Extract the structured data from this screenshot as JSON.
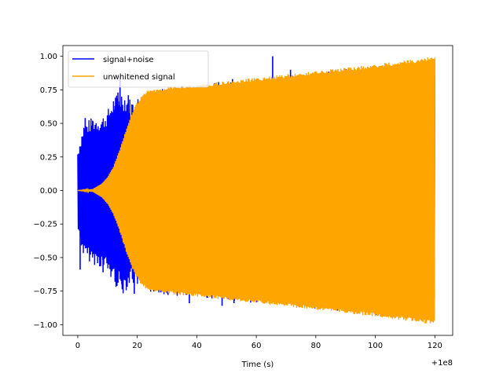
{
  "chart_data": {
    "type": "line",
    "title": "",
    "xlabel": "Time (s)",
    "ylabel": "",
    "x_offset_label": "+1e8",
    "xlim": [
      -5,
      126
    ],
    "ylim": [
      -1.08,
      1.08
    ],
    "xticks": [
      0,
      20,
      40,
      60,
      80,
      100,
      120
    ],
    "yticks": [
      1.0,
      0.75,
      0.5,
      0.25,
      0.0,
      -0.25,
      -0.5,
      -0.75,
      -1.0
    ],
    "xtick_labels": [
      "0",
      "20",
      "40",
      "60",
      "80",
      "100",
      "120"
    ],
    "ytick_labels": [
      "1.00",
      "0.75",
      "0.50",
      "0.25",
      "0.00",
      "−0.25",
      "−0.50",
      "−0.75",
      "−1.00"
    ],
    "grid": false,
    "legend_position": "top-left",
    "series": [
      {
        "name": "signal+noise",
        "color": "#0000ff",
        "x_range": [
          0,
          120
        ],
        "envelope_upper": [
          [
            0,
            0.3
          ],
          [
            2,
            0.5
          ],
          [
            5,
            0.55
          ],
          [
            8,
            0.55
          ],
          [
            10,
            0.6
          ],
          [
            12,
            0.7
          ],
          [
            15,
            0.75
          ],
          [
            18,
            0.68
          ],
          [
            20,
            0.7
          ],
          [
            25,
            0.76
          ],
          [
            40,
            0.8
          ],
          [
            60,
            0.84
          ],
          [
            80,
            0.88
          ],
          [
            100,
            0.93
          ],
          [
            120,
            0.96
          ]
        ],
        "envelope_lower": [
          [
            0,
            -0.3
          ],
          [
            2,
            -0.5
          ],
          [
            5,
            -0.55
          ],
          [
            8,
            -0.58
          ],
          [
            10,
            -0.62
          ],
          [
            12,
            -0.7
          ],
          [
            15,
            -0.78
          ],
          [
            18,
            -0.7
          ],
          [
            20,
            -0.72
          ],
          [
            25,
            -0.77
          ],
          [
            40,
            -0.8
          ],
          [
            60,
            -0.84
          ],
          [
            80,
            -0.88
          ],
          [
            100,
            -0.93
          ],
          [
            120,
            -0.97
          ]
        ],
        "spikes": [
          [
            0.8,
            -0.59
          ],
          [
            2.5,
            0.54
          ],
          [
            5,
            0.52
          ],
          [
            8.5,
            -0.61
          ],
          [
            12.5,
            0.63
          ],
          [
            13.5,
            0.73
          ],
          [
            14.2,
            0.85
          ],
          [
            14.8,
            -0.7
          ],
          [
            17,
            0.71
          ],
          [
            19,
            -0.77
          ],
          [
            37.5,
            -0.84
          ],
          [
            48.5,
            -0.86
          ],
          [
            52,
            0.83
          ],
          [
            52.5,
            -0.84
          ],
          [
            65.5,
            1.0
          ],
          [
            71.5,
            0.9
          ]
        ]
      },
      {
        "name": "unwhitened signal",
        "color": "#ffa500",
        "x_range": [
          0,
          120
        ],
        "envelope_upper": [
          [
            0,
            0.0
          ],
          [
            5,
            0.01
          ],
          [
            8,
            0.05
          ],
          [
            10,
            0.1
          ],
          [
            12,
            0.18
          ],
          [
            14,
            0.3
          ],
          [
            16,
            0.44
          ],
          [
            18,
            0.57
          ],
          [
            20,
            0.66
          ],
          [
            22,
            0.72
          ],
          [
            24,
            0.75
          ],
          [
            30,
            0.77
          ],
          [
            40,
            0.79
          ],
          [
            60,
            0.84
          ],
          [
            80,
            0.89
          ],
          [
            100,
            0.94
          ],
          [
            120,
            1.0
          ]
        ],
        "envelope_lower": [
          [
            0,
            0.0
          ],
          [
            5,
            -0.01
          ],
          [
            8,
            -0.05
          ],
          [
            10,
            -0.1
          ],
          [
            12,
            -0.18
          ],
          [
            14,
            -0.3
          ],
          [
            16,
            -0.44
          ],
          [
            18,
            -0.57
          ],
          [
            20,
            -0.66
          ],
          [
            22,
            -0.72
          ],
          [
            24,
            -0.75
          ],
          [
            30,
            -0.77
          ],
          [
            40,
            -0.79
          ],
          [
            60,
            -0.84
          ],
          [
            80,
            -0.89
          ],
          [
            100,
            -0.94
          ],
          [
            120,
            -1.0
          ]
        ]
      }
    ]
  }
}
